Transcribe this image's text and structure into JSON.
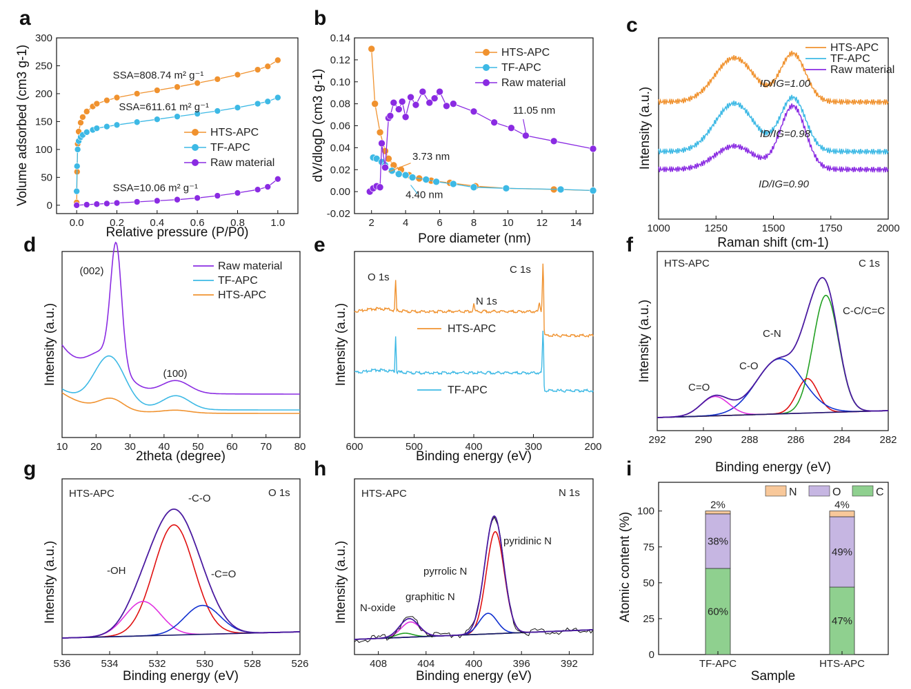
{
  "colors": {
    "hts": "#f0922f",
    "tf": "#3db9e5",
    "raw": "#8a2be2",
    "red": "#e01010",
    "blue": "#1030d0",
    "green": "#22a022",
    "magenta": "#e030e0",
    "envelope": "#4a1aa0",
    "N": "#f8c89a",
    "O": "#c6b6e2",
    "C": "#8fd08f"
  },
  "chart_data": [
    {
      "panel": "a",
      "type": "scatter",
      "xlabel": "Relative pressure (P/P0)",
      "ylabel": "Volume adsorbed (cm3 g-1)",
      "xlim": [
        -0.1,
        1.1
      ],
      "ylim": [
        -15,
        300
      ],
      "xticks": [
        "0.0",
        "0.2",
        "0.4",
        "0.6",
        "0.8",
        "1.0"
      ],
      "yticks": [
        "0",
        "50",
        "100",
        "150",
        "200",
        "250",
        "300"
      ],
      "series": [
        {
          "name": "HTS-APC",
          "color": "hts",
          "points": [
            [
              0,
              5
            ],
            [
              0.002,
              60
            ],
            [
              0.005,
              110
            ],
            [
              0.01,
              132
            ],
            [
              0.02,
              148
            ],
            [
              0.03,
              158
            ],
            [
              0.05,
              168
            ],
            [
              0.08,
              177
            ],
            [
              0.1,
              182
            ],
            [
              0.15,
              188
            ],
            [
              0.2,
              193
            ],
            [
              0.3,
              200
            ],
            [
              0.4,
              206
            ],
            [
              0.5,
              212
            ],
            [
              0.6,
              219
            ],
            [
              0.7,
              226
            ],
            [
              0.8,
              234
            ],
            [
              0.9,
              243
            ],
            [
              0.95,
              249
            ],
            [
              1.0,
              260
            ]
          ]
        },
        {
          "name": "TF-APC",
          "color": "tf",
          "points": [
            [
              0,
              25
            ],
            [
              0.002,
              70
            ],
            [
              0.005,
              100
            ],
            [
              0.01,
              115
            ],
            [
              0.02,
              122
            ],
            [
              0.03,
              126
            ],
            [
              0.05,
              131
            ],
            [
              0.08,
              135
            ],
            [
              0.1,
              138
            ],
            [
              0.15,
              141
            ],
            [
              0.2,
              144
            ],
            [
              0.3,
              149
            ],
            [
              0.4,
              154
            ],
            [
              0.5,
              159
            ],
            [
              0.6,
              164
            ],
            [
              0.7,
              169
            ],
            [
              0.8,
              175
            ],
            [
              0.9,
              182
            ],
            [
              0.95,
              186
            ],
            [
              1.0,
              193
            ]
          ]
        },
        {
          "name": "Raw material",
          "color": "raw",
          "points": [
            [
              0,
              0
            ],
            [
              0.05,
              1
            ],
            [
              0.1,
              2
            ],
            [
              0.15,
              3
            ],
            [
              0.2,
              4
            ],
            [
              0.3,
              6
            ],
            [
              0.4,
              8
            ],
            [
              0.5,
              10
            ],
            [
              0.6,
              13
            ],
            [
              0.7,
              17
            ],
            [
              0.8,
              22
            ],
            [
              0.9,
              28
            ],
            [
              0.95,
              33
            ],
            [
              1.0,
              47
            ]
          ]
        }
      ],
      "annotations": [
        {
          "text": "SSA=808.74 m² g⁻¹",
          "color": "hts",
          "x": 0.18,
          "y": 227
        },
        {
          "text": "SSA=611.61 m² g⁻¹",
          "color": "tf",
          "x": 0.21,
          "y": 170
        },
        {
          "text": "SSA=10.06 m² g⁻¹",
          "color": "raw",
          "x": 0.18,
          "y": 25
        }
      ]
    },
    {
      "panel": "b",
      "type": "line",
      "xlabel": "Pore diameter (nm)",
      "ylabel": "dV/dlogD (cm3 g-1)",
      "xlim": [
        1,
        15
      ],
      "ylim": [
        -0.02,
        0.14
      ],
      "xticks": [
        "2",
        "4",
        "6",
        "8",
        "10",
        "12",
        "14"
      ],
      "yticks": [
        "-0.02",
        "0.00",
        "0.02",
        "0.04",
        "0.06",
        "0.08",
        "0.10",
        "0.12",
        "0.14"
      ],
      "series": [
        {
          "name": "HTS-APC",
          "color": "hts",
          "points": [
            [
              2,
              0.13
            ],
            [
              2.2,
              0.08
            ],
            [
              2.5,
              0.054
            ],
            [
              2.8,
              0.037
            ],
            [
              3,
              0.03
            ],
            [
              3.3,
              0.024
            ],
            [
              3.73,
              0.02
            ],
            [
              4.2,
              0.015
            ],
            [
              4.8,
              0.012
            ],
            [
              5.5,
              0.01
            ],
            [
              6.6,
              0.008
            ],
            [
              8.1,
              0.005
            ],
            [
              9.9,
              0.003
            ],
            [
              12.7,
              0.002
            ],
            [
              15,
              0.001
            ]
          ]
        },
        {
          "name": "TF-APC",
          "color": "tf",
          "points": [
            [
              2.1,
              0.031
            ],
            [
              2.3,
              0.03
            ],
            [
              2.6,
              0.027
            ],
            [
              2.8,
              0.024
            ],
            [
              3.2,
              0.019
            ],
            [
              3.6,
              0.016
            ],
            [
              4.0,
              0.015
            ],
            [
              4.4,
              0.013
            ],
            [
              5.2,
              0.011
            ],
            [
              5.8,
              0.009
            ],
            [
              6.8,
              0.007
            ],
            [
              8.0,
              0.004
            ],
            [
              9.9,
              0.003
            ],
            [
              13.1,
              0.002
            ],
            [
              15,
              0.001
            ]
          ]
        },
        {
          "name": "Raw material",
          "color": "raw",
          "points": [
            [
              1.9,
              0
            ],
            [
              2.1,
              0.003
            ],
            [
              2.3,
              0.005
            ],
            [
              2.5,
              0.004
            ],
            [
              2.6,
              0.044
            ],
            [
              2.8,
              0.022
            ],
            [
              3.0,
              0.067
            ],
            [
              3.1,
              0.069
            ],
            [
              3.3,
              0.081
            ],
            [
              3.6,
              0.075
            ],
            [
              3.8,
              0.082
            ],
            [
              4.0,
              0.068
            ],
            [
              4.3,
              0.086
            ],
            [
              4.6,
              0.079
            ],
            [
              5.0,
              0.091
            ],
            [
              5.4,
              0.081
            ],
            [
              5.7,
              0.085
            ],
            [
              6.0,
              0.091
            ],
            [
              6.4,
              0.078
            ],
            [
              6.8,
              0.08
            ],
            [
              8.0,
              0.073
            ],
            [
              9.2,
              0.063
            ],
            [
              10.2,
              0.058
            ],
            [
              11.05,
              0.051
            ],
            [
              12.7,
              0.046
            ],
            [
              15,
              0.039
            ]
          ]
        }
      ],
      "annotations": [
        {
          "text": "11.05 nm",
          "color": "raw",
          "x": 10.3,
          "y": 0.071
        },
        {
          "text": "3.73 nm",
          "color": "hts",
          "x": 4.4,
          "y": 0.029
        },
        {
          "text": "4.40 nm",
          "color": "tf",
          "x": 4.0,
          "y": -0.006
        }
      ]
    },
    {
      "panel": "c",
      "type": "line",
      "xlabel": "Raman shift (cm-1)",
      "ylabel": "Intensity (a.u.)",
      "xlim": [
        1000,
        2000
      ],
      "xticks": [
        "1000",
        "1250",
        "1500",
        "1750",
        "2000"
      ],
      "series": [
        {
          "name": "HTS-APC",
          "color": "hts"
        },
        {
          "name": "TF-APC",
          "color": "tf"
        },
        {
          "name": "Raw material",
          "color": "raw"
        }
      ],
      "annotations": [
        {
          "text": "ID/IG=1.00",
          "color": "hts"
        },
        {
          "text": "ID/IG=0.98",
          "color": "tf"
        },
        {
          "text": "ID/IG=0.90",
          "color": "raw"
        }
      ]
    },
    {
      "panel": "d",
      "type": "line",
      "xlabel": "2theta (degree)",
      "ylabel": "Intensity (a.u.)",
      "xlim": [
        10,
        80
      ],
      "xticks": [
        "10",
        "20",
        "30",
        "40",
        "50",
        "60",
        "70",
        "80"
      ],
      "series": [
        {
          "name": "Raw material",
          "color": "raw"
        },
        {
          "name": "TF-APC",
          "color": "tf"
        },
        {
          "name": "HTS-APC",
          "color": "hts"
        }
      ],
      "annotations": [
        {
          "text": "(002)"
        },
        {
          "text": "(100)"
        }
      ]
    },
    {
      "panel": "e",
      "type": "line",
      "xlabel": "Binding energy (eV)",
      "ylabel": "Intensity (a.u.)",
      "xlim": [
        600,
        200
      ],
      "xticks": [
        "600",
        "500",
        "400",
        "300",
        "200"
      ],
      "series": [
        {
          "name": "HTS-APC",
          "color": "hts"
        },
        {
          "name": "TF-APC",
          "color": "tf"
        }
      ],
      "annotations": [
        {
          "text": "O 1s"
        },
        {
          "text": "C 1s"
        },
        {
          "text": "N 1s"
        }
      ]
    },
    {
      "panel": "f",
      "type": "line",
      "xlabel": "Binding energy (eV)",
      "ylabel": "Intensity (a.u.)",
      "xlim": [
        292,
        282
      ],
      "xticks": [
        "292",
        "290",
        "288",
        "286",
        "284",
        "282"
      ],
      "sample": "HTS-APC",
      "region": "C 1s",
      "peaks": [
        {
          "label": "C-C/C=C",
          "center": 284.7,
          "color": "green"
        },
        {
          "label": "",
          "center": 285.5,
          "color": "red"
        },
        {
          "label": "C-N",
          "center": 286.7,
          "color": "blue"
        },
        {
          "label": "C-O",
          "center": 286.7
        },
        {
          "label": "C=O",
          "center": 289.5,
          "color": "magenta"
        }
      ]
    },
    {
      "panel": "g",
      "type": "line",
      "xlabel": "Binding energy (eV)",
      "ylabel": "Intensity (a.u.)",
      "xlim": [
        536,
        526
      ],
      "xticks": [
        "536",
        "534",
        "532",
        "530",
        "528",
        "526"
      ],
      "sample": "HTS-APC",
      "region": "O 1s",
      "peaks": [
        {
          "label": "-C-O",
          "center": 531.3,
          "color": "red"
        },
        {
          "label": "-OH",
          "center": 532.6,
          "color": "magenta"
        },
        {
          "label": "-C=O",
          "center": 530.1,
          "color": "blue"
        }
      ]
    },
    {
      "panel": "h",
      "type": "line",
      "xlabel": "Binding energy (eV)",
      "ylabel": "Intensity (a.u.)",
      "xlim": [
        410,
        390
      ],
      "xticks": [
        "408",
        "404",
        "400",
        "396",
        "392"
      ],
      "sample": "HTS-APC",
      "region": "N 1s",
      "peaks": [
        {
          "label": "pyridinic N",
          "center": 398.2,
          "color": "red"
        },
        {
          "label": "pyrrolic N",
          "center": 398.8,
          "color": "blue"
        },
        {
          "label": "graphitic N",
          "center": 405.3,
          "color": "magenta"
        },
        {
          "label": "N-oxide",
          "center": 405.8,
          "color": "green"
        }
      ]
    },
    {
      "panel": "i",
      "type": "bar",
      "stacked": true,
      "xlabel": "Sample",
      "ylabel": "Atomic content (%)",
      "ylim": [
        0,
        120
      ],
      "yticks": [
        "0",
        "25",
        "50",
        "75",
        "100"
      ],
      "categories": [
        "TF-APC",
        "HTS-APC"
      ],
      "legend": [
        "N",
        "O",
        "C"
      ],
      "series": [
        {
          "name": "C",
          "values": [
            60,
            47
          ],
          "labels": [
            "60%",
            "47%"
          ],
          "color": "C"
        },
        {
          "name": "O",
          "values": [
            38,
            49
          ],
          "labels": [
            "38%",
            "49%"
          ],
          "color": "O"
        },
        {
          "name": "N",
          "values": [
            2,
            4
          ],
          "labels": [
            "2%",
            "4%"
          ],
          "color": "N"
        }
      ]
    }
  ]
}
